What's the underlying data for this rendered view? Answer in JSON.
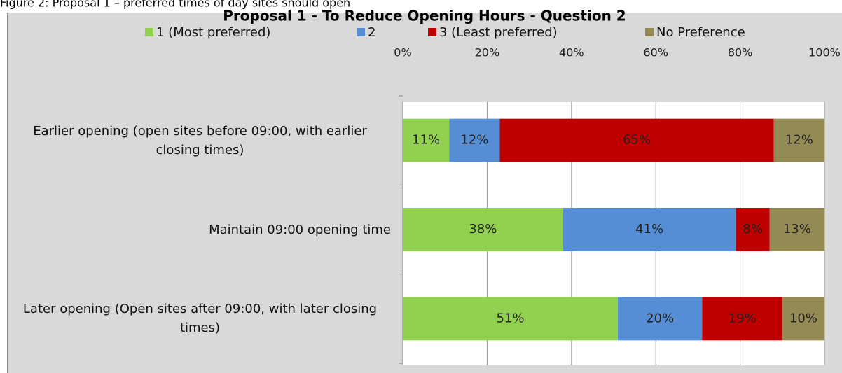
{
  "caption": "Figure 2: Proposal 1 – preferred times of day sites should open",
  "chart_data": {
    "type": "stacked_barh",
    "title": "Proposal 1 - To Reduce Opening Hours - Question 2",
    "categories": [
      "Earlier opening (open sites before 09:00, with earlier closing times)",
      "Maintain 09:00 opening time",
      "Later opening (Open sites after 09:00, with later closing times)"
    ],
    "series": [
      {
        "name": "1 (Most preferred)",
        "color": "#92d050",
        "values": [
          11,
          38,
          51
        ],
        "value_labels": [
          "11%",
          "38%",
          "51%"
        ]
      },
      {
        "name": "2",
        "color": "#558ed5",
        "values": [
          12,
          41,
          20
        ],
        "value_labels": [
          "12%",
          "41%",
          "20%"
        ]
      },
      {
        "name": "3 (Least preferred)",
        "color": "#c00000",
        "values": [
          65,
          8,
          19
        ],
        "value_labels": [
          "65%",
          "8%",
          "19%"
        ]
      },
      {
        "name": "No Preference",
        "color": "#948a54",
        "values": [
          12,
          13,
          10
        ],
        "value_labels": [
          "12%",
          "13%",
          "10%"
        ]
      }
    ],
    "xlim": [
      0,
      100
    ],
    "xticks": [
      {
        "value": 0,
        "label": "0%"
      },
      {
        "value": 20,
        "label": "20%"
      },
      {
        "value": 40,
        "label": "40%"
      },
      {
        "value": 60,
        "label": "60%"
      },
      {
        "value": 80,
        "label": "80%"
      },
      {
        "value": 100,
        "label": "100%"
      }
    ],
    "grid": true,
    "legend": "top"
  }
}
